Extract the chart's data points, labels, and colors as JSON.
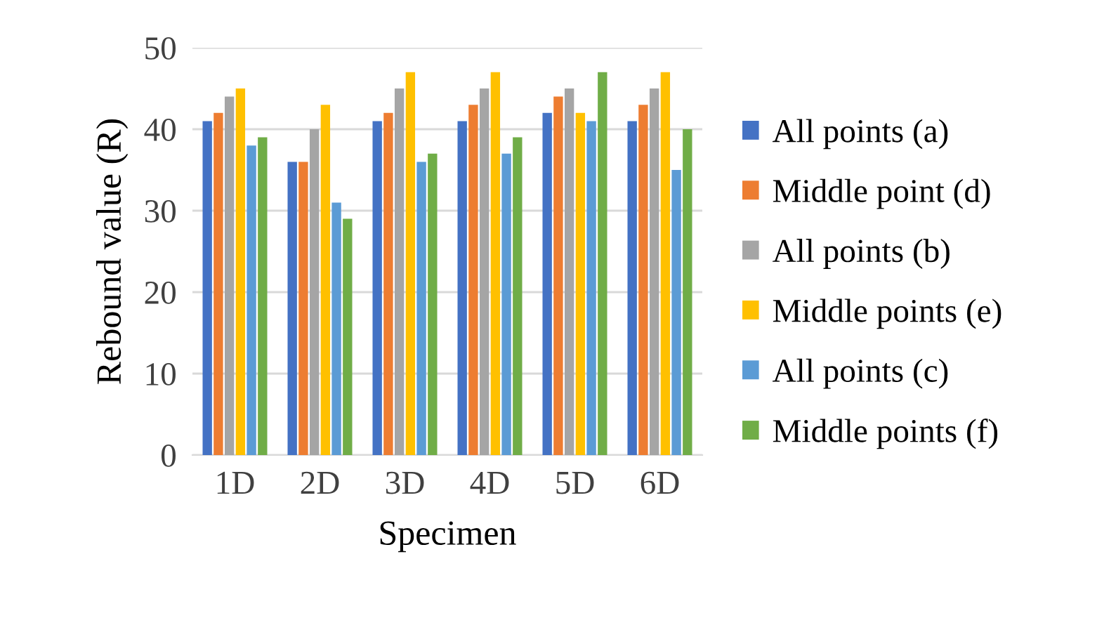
{
  "chart_data": {
    "type": "bar",
    "xlabel": "Specimen",
    "ylabel": "Rebound value (R)",
    "categories": [
      "1D",
      "2D",
      "3D",
      "4D",
      "5D",
      "6D"
    ],
    "series": [
      {
        "name": "All points (a)",
        "color": "#4472c4",
        "values": [
          41,
          36,
          41,
          41,
          42,
          41
        ]
      },
      {
        "name": "Middle point (d)",
        "color": "#ed7d31",
        "values": [
          42,
          36,
          42,
          43,
          44,
          43
        ]
      },
      {
        "name": "All points (b)",
        "color": "#a5a5a5",
        "values": [
          44,
          40,
          45,
          45,
          45,
          45
        ]
      },
      {
        "name": "Middle points (e)",
        "color": "#ffc000",
        "values": [
          45,
          43,
          47,
          47,
          42,
          47
        ]
      },
      {
        "name": "All points (c)",
        "color": "#5b9bd5",
        "values": [
          38,
          31,
          36,
          37,
          41,
          35
        ]
      },
      {
        "name": "Middle points (f)",
        "color": "#70ad47",
        "values": [
          39,
          29,
          37,
          39,
          47,
          40
        ]
      }
    ],
    "ylim": [
      0,
      50
    ],
    "yticks": [
      0,
      10,
      20,
      30,
      40,
      50
    ],
    "grid": "y",
    "legend": "right"
  }
}
